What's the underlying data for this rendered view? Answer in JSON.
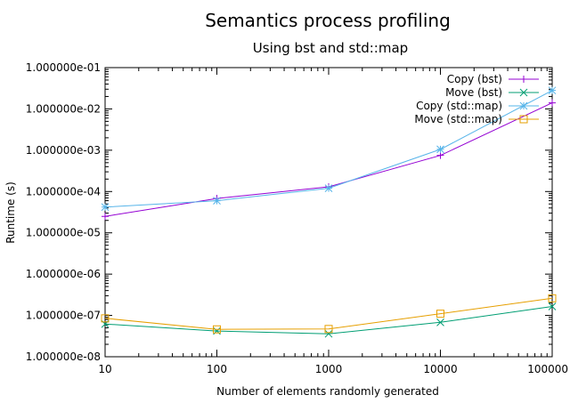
{
  "chart_data": {
    "type": "line",
    "title": "Semantics process profiling",
    "subtitle": "Using bst and std::map",
    "xlabel": "Number of elements randomly generated",
    "ylabel": "Runtime (s)",
    "xscale": "log",
    "yscale": "log",
    "xlim": [
      10,
      100000
    ],
    "ylim": [
      1e-08,
      0.1
    ],
    "x_tick_labels": [
      "10",
      "100",
      "1000",
      "10000",
      "100000"
    ],
    "x_tick_values": [
      10,
      100,
      1000,
      10000,
      100000
    ],
    "y_tick_labels": [
      "1.000000e-08",
      "1.000000e-07",
      "1.000000e-06",
      "1.000000e-05",
      "1.000000e-04",
      "1.000000e-03",
      "1.000000e-02",
      "1.000000e-01"
    ],
    "y_tick_values": [
      1e-08,
      1e-07,
      1e-06,
      1e-05,
      0.0001,
      0.001,
      0.01,
      0.1
    ],
    "grid": false,
    "legend_position": "top-right",
    "x": [
      10,
      100,
      1000,
      10000,
      100000
    ],
    "series": [
      {
        "name": "Copy (bst)",
        "color": "#9400d3",
        "marker": "plus",
        "values": [
          2.5e-05,
          6.8e-05,
          0.00013,
          0.00075,
          0.014
        ]
      },
      {
        "name": "Move (bst)",
        "color": "#009e73",
        "marker": "cross",
        "values": [
          6.2e-08,
          4.2e-08,
          3.6e-08,
          6.8e-08,
          1.65e-07
        ]
      },
      {
        "name": "Copy (std::map)",
        "color": "#56b4e9",
        "marker": "star",
        "values": [
          4.2e-05,
          6e-05,
          0.00012,
          0.00105,
          0.028
        ]
      },
      {
        "name": "Move (std::map)",
        "color": "#e69f00",
        "marker": "square",
        "values": [
          8.5e-08,
          4.6e-08,
          4.7e-08,
          1.1e-07,
          2.6e-07
        ]
      }
    ]
  }
}
